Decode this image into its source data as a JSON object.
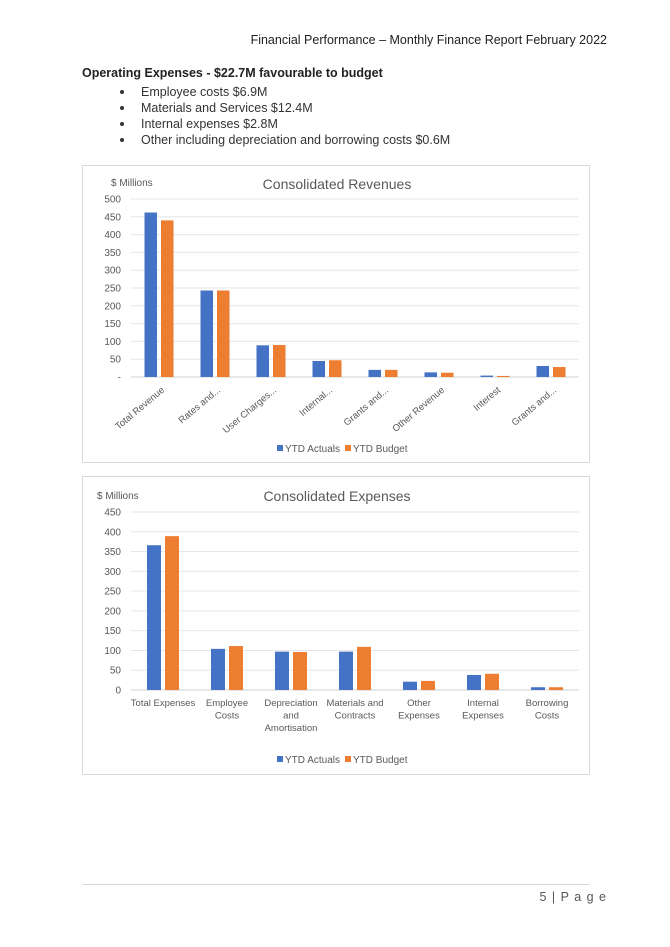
{
  "header": {
    "title": "Financial Performance – Monthly Finance Report February 2022"
  },
  "section": {
    "heading": "Operating Expenses - $22.7M favourable to budget",
    "bullets": [
      "Employee costs $6.9M",
      "Materials and Services $12.4M",
      "Internal expenses $2.8M",
      "Other including depreciation and borrowing costs $0.6M"
    ]
  },
  "colors": {
    "actuals": "#4472c4",
    "budget": "#ed7d31",
    "grid": "#e6e6e6"
  },
  "chart_data": [
    {
      "type": "bar",
      "title": "Consolidated Revenues",
      "ylabel": "$ Millions",
      "xlabel": "",
      "ylim": [
        0,
        500
      ],
      "yticks": [
        0,
        50,
        100,
        150,
        200,
        250,
        300,
        350,
        400,
        450,
        500
      ],
      "ytick_labels": [
        "-",
        "50",
        "100",
        "150",
        "200",
        "250",
        "300",
        "350",
        "400",
        "450",
        "500"
      ],
      "grid": true,
      "legend": "bottom",
      "categories": [
        "Total Revenue",
        "Rates and...",
        "User Charges...",
        "Internal...",
        "Grants and...",
        "Other Revenue",
        "Interest",
        "Grants and..."
      ],
      "series": [
        {
          "name": "YTD Actuals",
          "values": [
            462,
            243,
            89,
            45,
            20,
            13,
            4,
            31
          ]
        },
        {
          "name": "YTD Budget",
          "values": [
            440,
            243,
            90,
            47,
            20,
            12,
            3,
            28
          ]
        }
      ]
    },
    {
      "type": "bar",
      "title": "Consolidated Expenses",
      "ylabel": "$ Millions",
      "xlabel": "",
      "ylim": [
        0,
        450
      ],
      "yticks": [
        0,
        50,
        100,
        150,
        200,
        250,
        300,
        350,
        400,
        450
      ],
      "ytick_labels": [
        "0",
        "50",
        "100",
        "150",
        "200",
        "250",
        "300",
        "350",
        "400",
        "450"
      ],
      "grid": true,
      "legend": "bottom",
      "categories": [
        "Total Expenses",
        "Employee Costs",
        "Depreciation and Amortisation",
        "Materials and Contracts",
        "Other Expenses",
        "Internal Expenses",
        "Borrowing Costs"
      ],
      "category_lines": [
        [
          "Total Expenses"
        ],
        [
          "Employee",
          "Costs"
        ],
        [
          "Depreciation",
          "and",
          "Amortisation"
        ],
        [
          "Materials and",
          "Contracts"
        ],
        [
          "Other",
          "Expenses"
        ],
        [
          "Internal",
          "Expenses"
        ],
        [
          "Borrowing",
          "Costs"
        ]
      ],
      "series": [
        {
          "name": "YTD Actuals",
          "values": [
            366,
            104,
            97,
            97,
            21,
            38,
            7
          ]
        },
        {
          "name": "YTD Budget",
          "values": [
            389,
            111,
            96,
            109,
            23,
            41,
            7
          ]
        }
      ]
    }
  ],
  "footer": {
    "page": "5 | P a g e"
  }
}
